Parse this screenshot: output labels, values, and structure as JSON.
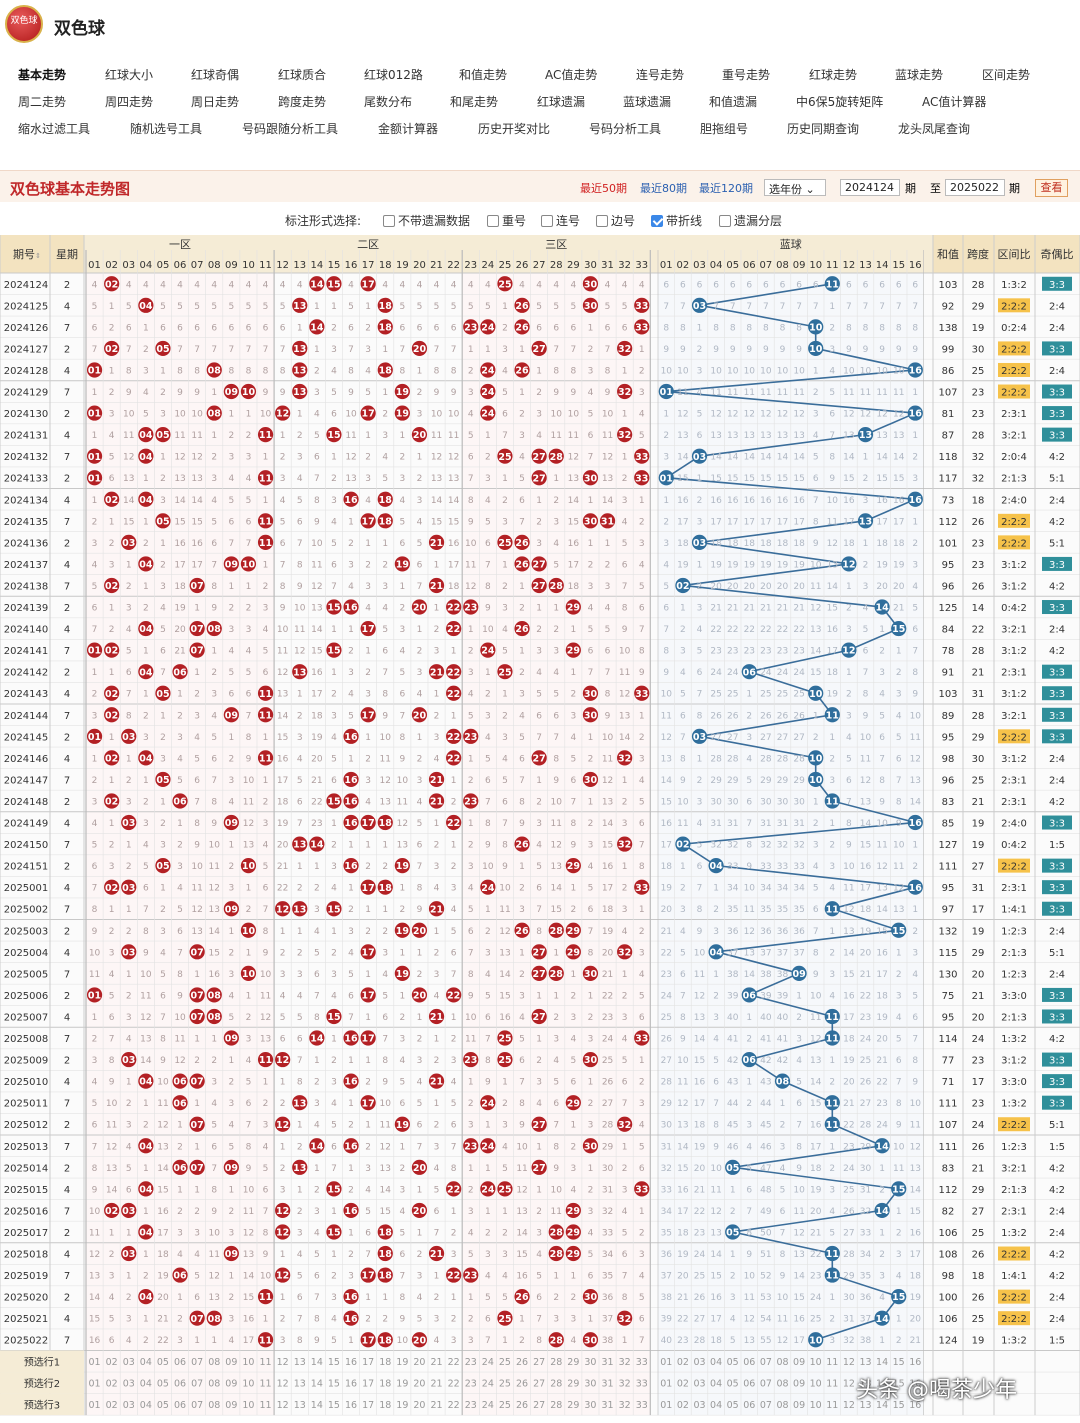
{
  "app": {
    "title": "双色球",
    "logo_text": "双色球"
  },
  "nav": [
    [
      "基本走势",
      "红球大小",
      "红球奇偶",
      "红球质合",
      "红球012路",
      "和值走势",
      "AC值走势",
      "连号走势",
      "重号走势",
      "红球走势",
      "蓝球走势",
      "区间走势"
    ],
    [
      "周二走势",
      "周四走势",
      "周日走势",
      "跨度走势",
      "尾数分布",
      "和尾走势",
      "红球遗漏",
      "蓝球遗漏",
      "和值遗漏",
      "中6保5旋转矩阵",
      "AC值计算器"
    ],
    [
      "缩水过滤工具",
      "随机选号工具",
      "号码跟随分析工具",
      "金额计算器",
      "历史开奖对比",
      "号码分析工具",
      "胆拖组号",
      "历史同期查询",
      "龙头凤尾查询"
    ]
  ],
  "toolbar": {
    "title": "双色球基本走势图",
    "recent50": "最近50期",
    "recent80": "最近80期",
    "recent120": "最近120期",
    "year_select": "选年份",
    "from": "2024124",
    "period1": "期",
    "to_label": "至",
    "to": "2025022",
    "period2": "期",
    "view": "查看"
  },
  "options": {
    "label": "标注形式选择:",
    "items": [
      {
        "label": "不带遗漏数据",
        "checked": false
      },
      {
        "label": "重号",
        "checked": false
      },
      {
        "label": "连号",
        "checked": false
      },
      {
        "label": "边号",
        "checked": false
      },
      {
        "label": "带折线",
        "checked": true
      },
      {
        "label": "遗漏分层",
        "checked": false
      }
    ]
  },
  "headers": {
    "issue": "期号",
    "week": "星期",
    "zone1": "一区",
    "zone2": "二区",
    "zone3": "三区",
    "blue": "蓝球",
    "sum": "和值",
    "span": "跨度",
    "zone_ratio": "区间比",
    "odd_even": "奇偶比"
  },
  "rows": [
    {
      "issue": "2024124",
      "week": "2",
      "red": [
        2,
        14,
        15,
        17,
        25,
        30
      ],
      "blue": 11,
      "sum": "103",
      "span": "28",
      "zone": "1:3:2",
      "oe": "3:3",
      "hl": false
    },
    {
      "issue": "2024125",
      "week": "4",
      "red": [
        4,
        13,
        18,
        26,
        30,
        33
      ],
      "blue": 3,
      "sum": "92",
      "span": "29",
      "zone": "2:2:2",
      "oe": "2:4",
      "hl": true
    },
    {
      "issue": "2024126",
      "week": "7",
      "red": [
        14,
        18,
        23,
        24,
        26,
        33
      ],
      "blue": 10,
      "sum": "138",
      "span": "19",
      "zone": "0:2:4",
      "oe": "2:4",
      "hl": false
    },
    {
      "issue": "2024127",
      "week": "2",
      "red": [
        2,
        5,
        13,
        20,
        27,
        32
      ],
      "blue": 10,
      "sum": "99",
      "span": "30",
      "zone": "2:2:2",
      "oe": "3:3",
      "hl": true
    },
    {
      "issue": "2024128",
      "week": "4",
      "red": [
        1,
        8,
        13,
        18,
        24,
        26
      ],
      "blue": 16,
      "sum": "86",
      "span": "25",
      "zone": "2:2:2",
      "oe": "2:4",
      "hl": true
    },
    {
      "issue": "2024129",
      "week": "7",
      "red": [
        9,
        10,
        13,
        19,
        24,
        32
      ],
      "blue": 1,
      "sum": "107",
      "span": "23",
      "zone": "2:2:2",
      "oe": "3:3",
      "hl": true
    },
    {
      "issue": "2024130",
      "week": "2",
      "red": [
        1,
        8,
        12,
        17,
        19,
        24
      ],
      "blue": 16,
      "sum": "81",
      "span": "23",
      "zone": "2:3:1",
      "oe": "3:3",
      "hl": false
    },
    {
      "issue": "2024131",
      "week": "4",
      "red": [
        4,
        5,
        11,
        15,
        20,
        32
      ],
      "blue": 13,
      "sum": "87",
      "span": "28",
      "zone": "3:2:1",
      "oe": "3:3",
      "hl": false
    },
    {
      "issue": "2024132",
      "week": "7",
      "red": [
        1,
        4,
        25,
        27,
        28,
        33
      ],
      "blue": 3,
      "sum": "118",
      "span": "32",
      "zone": "2:0:4",
      "oe": "4:2",
      "hl": false
    },
    {
      "issue": "2024133",
      "week": "2",
      "red": [
        1,
        11,
        27,
        30,
        33
      ],
      "blue": 1,
      "sum": "117",
      "span": "32",
      "zone": "2:1:3",
      "oe": "5:1",
      "hl": false
    },
    {
      "issue": "2024134",
      "week": "4",
      "red": [
        2,
        4,
        16,
        18
      ],
      "blue": 16,
      "sum": "73",
      "span": "18",
      "zone": "2:4:0",
      "oe": "2:4",
      "hl": false
    },
    {
      "issue": "2024135",
      "week": "7",
      "red": [
        5,
        11,
        17,
        18,
        30,
        31
      ],
      "blue": 13,
      "sum": "112",
      "span": "26",
      "zone": "2:2:2",
      "oe": "4:2",
      "hl": true
    },
    {
      "issue": "2024136",
      "week": "2",
      "red": [
        3,
        11,
        21,
        25,
        26
      ],
      "blue": 3,
      "sum": "101",
      "span": "23",
      "zone": "2:2:2",
      "oe": "5:1",
      "hl": true
    },
    {
      "issue": "2024137",
      "week": "4",
      "red": [
        4,
        9,
        10,
        19,
        26,
        27
      ],
      "blue": 12,
      "sum": "95",
      "span": "23",
      "zone": "3:1:2",
      "oe": "3:3",
      "hl": false
    },
    {
      "issue": "2024138",
      "week": "7",
      "red": [
        2,
        7,
        21,
        27,
        28
      ],
      "blue": 2,
      "sum": "96",
      "span": "26",
      "zone": "3:1:2",
      "oe": "4:2",
      "hl": false
    },
    {
      "issue": "2024139",
      "week": "2",
      "red": [
        15,
        16,
        20,
        22,
        23,
        29
      ],
      "blue": 14,
      "sum": "125",
      "span": "14",
      "zone": "0:4:2",
      "oe": "3:3",
      "hl": false
    },
    {
      "issue": "2024140",
      "week": "4",
      "red": [
        4,
        7,
        8,
        17,
        22,
        26
      ],
      "blue": 15,
      "sum": "84",
      "span": "22",
      "zone": "3:2:1",
      "oe": "2:4",
      "hl": false
    },
    {
      "issue": "2024141",
      "week": "7",
      "red": [
        1,
        2,
        7,
        15,
        24,
        29
      ],
      "blue": 12,
      "sum": "78",
      "span": "28",
      "zone": "3:1:2",
      "oe": "4:2",
      "hl": false
    },
    {
      "issue": "2024142",
      "week": "2",
      "red": [
        4,
        6,
        13,
        21,
        22,
        25
      ],
      "blue": 6,
      "sum": "91",
      "span": "21",
      "zone": "2:3:1",
      "oe": "3:3",
      "hl": false
    },
    {
      "issue": "2024143",
      "week": "4",
      "red": [
        2,
        5,
        11,
        22,
        30,
        33
      ],
      "blue": 10,
      "sum": "103",
      "span": "31",
      "zone": "3:1:2",
      "oe": "3:3",
      "hl": false
    },
    {
      "issue": "2024144",
      "week": "7",
      "red": [
        2,
        9,
        11,
        17,
        20,
        30
      ],
      "blue": 11,
      "sum": "89",
      "span": "28",
      "zone": "3:2:1",
      "oe": "3:3",
      "hl": false
    },
    {
      "issue": "2024145",
      "week": "2",
      "red": [
        1,
        3,
        16,
        22,
        23
      ],
      "blue": 3,
      "sum": "95",
      "span": "29",
      "zone": "2:2:2",
      "oe": "3:3",
      "hl": true
    },
    {
      "issue": "2024146",
      "week": "4",
      "red": [
        2,
        4,
        11,
        22,
        27,
        32
      ],
      "blue": 10,
      "sum": "98",
      "span": "30",
      "zone": "3:1:2",
      "oe": "2:4",
      "hl": false
    },
    {
      "issue": "2024147",
      "week": "7",
      "red": [
        5,
        16,
        21,
        30
      ],
      "blue": 10,
      "sum": "96",
      "span": "25",
      "zone": "2:3:1",
      "oe": "2:4",
      "hl": false
    },
    {
      "issue": "2024148",
      "week": "2",
      "red": [
        2,
        6,
        15,
        16,
        21,
        23
      ],
      "blue": 11,
      "sum": "83",
      "span": "21",
      "zone": "2:3:1",
      "oe": "4:2",
      "hl": false
    },
    {
      "issue": "2024149",
      "week": "4",
      "red": [
        3,
        9,
        16,
        17,
        18,
        22
      ],
      "blue": 16,
      "sum": "85",
      "span": "19",
      "zone": "2:4:0",
      "oe": "3:3",
      "hl": false
    },
    {
      "issue": "2024150",
      "week": "7",
      "red": [
        13,
        14,
        26,
        32
      ],
      "blue": 2,
      "sum": "127",
      "span": "19",
      "zone": "0:4:2",
      "oe": "1:5",
      "hl": false
    },
    {
      "issue": "2024151",
      "week": "2",
      "red": [
        5,
        10,
        16,
        19,
        29
      ],
      "blue": 4,
      "sum": "111",
      "span": "27",
      "zone": "2:2:2",
      "oe": "3:3",
      "hl": true
    },
    {
      "issue": "2025001",
      "week": "4",
      "red": [
        2,
        3,
        17,
        18,
        24,
        33
      ],
      "blue": 16,
      "sum": "95",
      "span": "31",
      "zone": "2:3:1",
      "oe": "3:3",
      "hl": false
    },
    {
      "issue": "2025002",
      "week": "7",
      "red": [
        9,
        12,
        13,
        15,
        21
      ],
      "blue": 11,
      "sum": "97",
      "span": "17",
      "zone": "1:4:1",
      "oe": "3:3",
      "hl": false
    },
    {
      "issue": "2025003",
      "week": "2",
      "red": [
        10,
        19,
        20,
        26,
        28,
        29
      ],
      "blue": 15,
      "sum": "132",
      "span": "19",
      "zone": "1:2:3",
      "oe": "2:4",
      "hl": false
    },
    {
      "issue": "2025004",
      "week": "4",
      "red": [
        3,
        7,
        17,
        27,
        29,
        32
      ],
      "blue": 4,
      "sum": "115",
      "span": "29",
      "zone": "2:1:3",
      "oe": "5:1",
      "hl": false
    },
    {
      "issue": "2025005",
      "week": "7",
      "red": [
        10,
        19,
        27,
        28,
        30
      ],
      "blue": 9,
      "sum": "130",
      "span": "20",
      "zone": "1:2:3",
      "oe": "2:4",
      "hl": false
    },
    {
      "issue": "2025006",
      "week": "2",
      "red": [
        1,
        7,
        8,
        17,
        20,
        22
      ],
      "blue": 6,
      "sum": "75",
      "span": "21",
      "zone": "3:3:0",
      "oe": "3:3",
      "hl": false
    },
    {
      "issue": "2025007",
      "week": "4",
      "red": [
        7,
        8,
        15,
        21,
        27
      ],
      "blue": 11,
      "sum": "95",
      "span": "20",
      "zone": "2:1:3",
      "oe": "3:3",
      "hl": false
    },
    {
      "issue": "2025008",
      "week": "7",
      "red": [
        9,
        14,
        16,
        17,
        25,
        33
      ],
      "blue": 11,
      "sum": "114",
      "span": "24",
      "zone": "1:3:2",
      "oe": "4:2",
      "hl": false
    },
    {
      "issue": "2025009",
      "week": "2",
      "red": [
        3,
        11,
        12,
        23,
        25,
        30
      ],
      "blue": 6,
      "sum": "77",
      "span": "23",
      "zone": "3:1:2",
      "oe": "3:3",
      "hl": false
    },
    {
      "issue": "2025010",
      "week": "4",
      "red": [
        4,
        6,
        7,
        16,
        21
      ],
      "blue": 8,
      "sum": "71",
      "span": "17",
      "zone": "3:3:0",
      "oe": "3:3",
      "hl": false
    },
    {
      "issue": "2025011",
      "week": "7",
      "red": [
        6,
        13,
        17,
        24,
        29
      ],
      "blue": 11,
      "sum": "111",
      "span": "23",
      "zone": "1:3:2",
      "oe": "3:3",
      "hl": false
    },
    {
      "issue": "2025012",
      "week": "2",
      "red": [
        7,
        12,
        19,
        27,
        32
      ],
      "blue": 11,
      "sum": "107",
      "span": "24",
      "zone": "2:2:2",
      "oe": "5:1",
      "hl": true
    },
    {
      "issue": "2025013",
      "week": "7",
      "red": [
        4,
        14,
        16,
        23,
        24,
        30
      ],
      "blue": 14,
      "sum": "111",
      "span": "26",
      "zone": "1:2:3",
      "oe": "1:5",
      "hl": false
    },
    {
      "issue": "2025014",
      "week": "2",
      "red": [
        6,
        7,
        9,
        13,
        20,
        27
      ],
      "blue": 5,
      "sum": "83",
      "span": "21",
      "zone": "3:2:1",
      "oe": "4:2",
      "hl": false
    },
    {
      "issue": "2025015",
      "week": "4",
      "red": [
        4,
        15,
        22,
        24,
        25,
        33
      ],
      "blue": 15,
      "sum": "112",
      "span": "29",
      "zone": "2:1:3",
      "oe": "4:2",
      "hl": false
    },
    {
      "issue": "2025016",
      "week": "7",
      "red": [
        2,
        3,
        12,
        16,
        20,
        29
      ],
      "blue": 14,
      "sum": "82",
      "span": "27",
      "zone": "2:3:1",
      "oe": "2:4",
      "hl": false
    },
    {
      "issue": "2025017",
      "week": "2",
      "red": [
        4,
        12,
        15,
        18,
        28,
        29
      ],
      "blue": 5,
      "sum": "106",
      "span": "25",
      "zone": "1:3:2",
      "oe": "2:4",
      "hl": false
    },
    {
      "issue": "2025018",
      "week": "4",
      "red": [
        3,
        9,
        18,
        21,
        28,
        29
      ],
      "blue": 11,
      "sum": "108",
      "span": "26",
      "zone": "2:2:2",
      "oe": "4:2",
      "hl": true
    },
    {
      "issue": "2025019",
      "week": "7",
      "red": [
        6,
        12,
        17,
        18,
        22,
        23
      ],
      "blue": 11,
      "sum": "98",
      "span": "18",
      "zone": "1:4:1",
      "oe": "4:2",
      "hl": false
    },
    {
      "issue": "2025020",
      "week": "2",
      "red": [
        4,
        11,
        16,
        26,
        30
      ],
      "blue": 15,
      "sum": "100",
      "span": "26",
      "zone": "2:2:2",
      "oe": "2:4",
      "hl": true
    },
    {
      "issue": "2025021",
      "week": "4",
      "red": [
        7,
        8,
        16,
        25,
        32
      ],
      "blue": 14,
      "sum": "106",
      "span": "25",
      "zone": "2:2:2",
      "oe": "2:4",
      "hl": true
    },
    {
      "issue": "2025022",
      "week": "7",
      "red": [
        11,
        17,
        18,
        20,
        28,
        30
      ],
      "blue": 10,
      "sum": "124",
      "span": "19",
      "zone": "1:3:2",
      "oe": "1:5",
      "hl": false
    }
  ],
  "footer_rows": [
    "预选行1",
    "预选行2",
    "预选行3"
  ],
  "colors": {
    "red_ball": "#b32024",
    "blue_ball": "#2f6e9c",
    "line": "#3a6d9a",
    "header_bg": "#f3e8c8",
    "hl_ratio": "#f6c24a",
    "oe_bg": "#2f8f9a"
  },
  "watermark": "头条 @喝茶少年"
}
